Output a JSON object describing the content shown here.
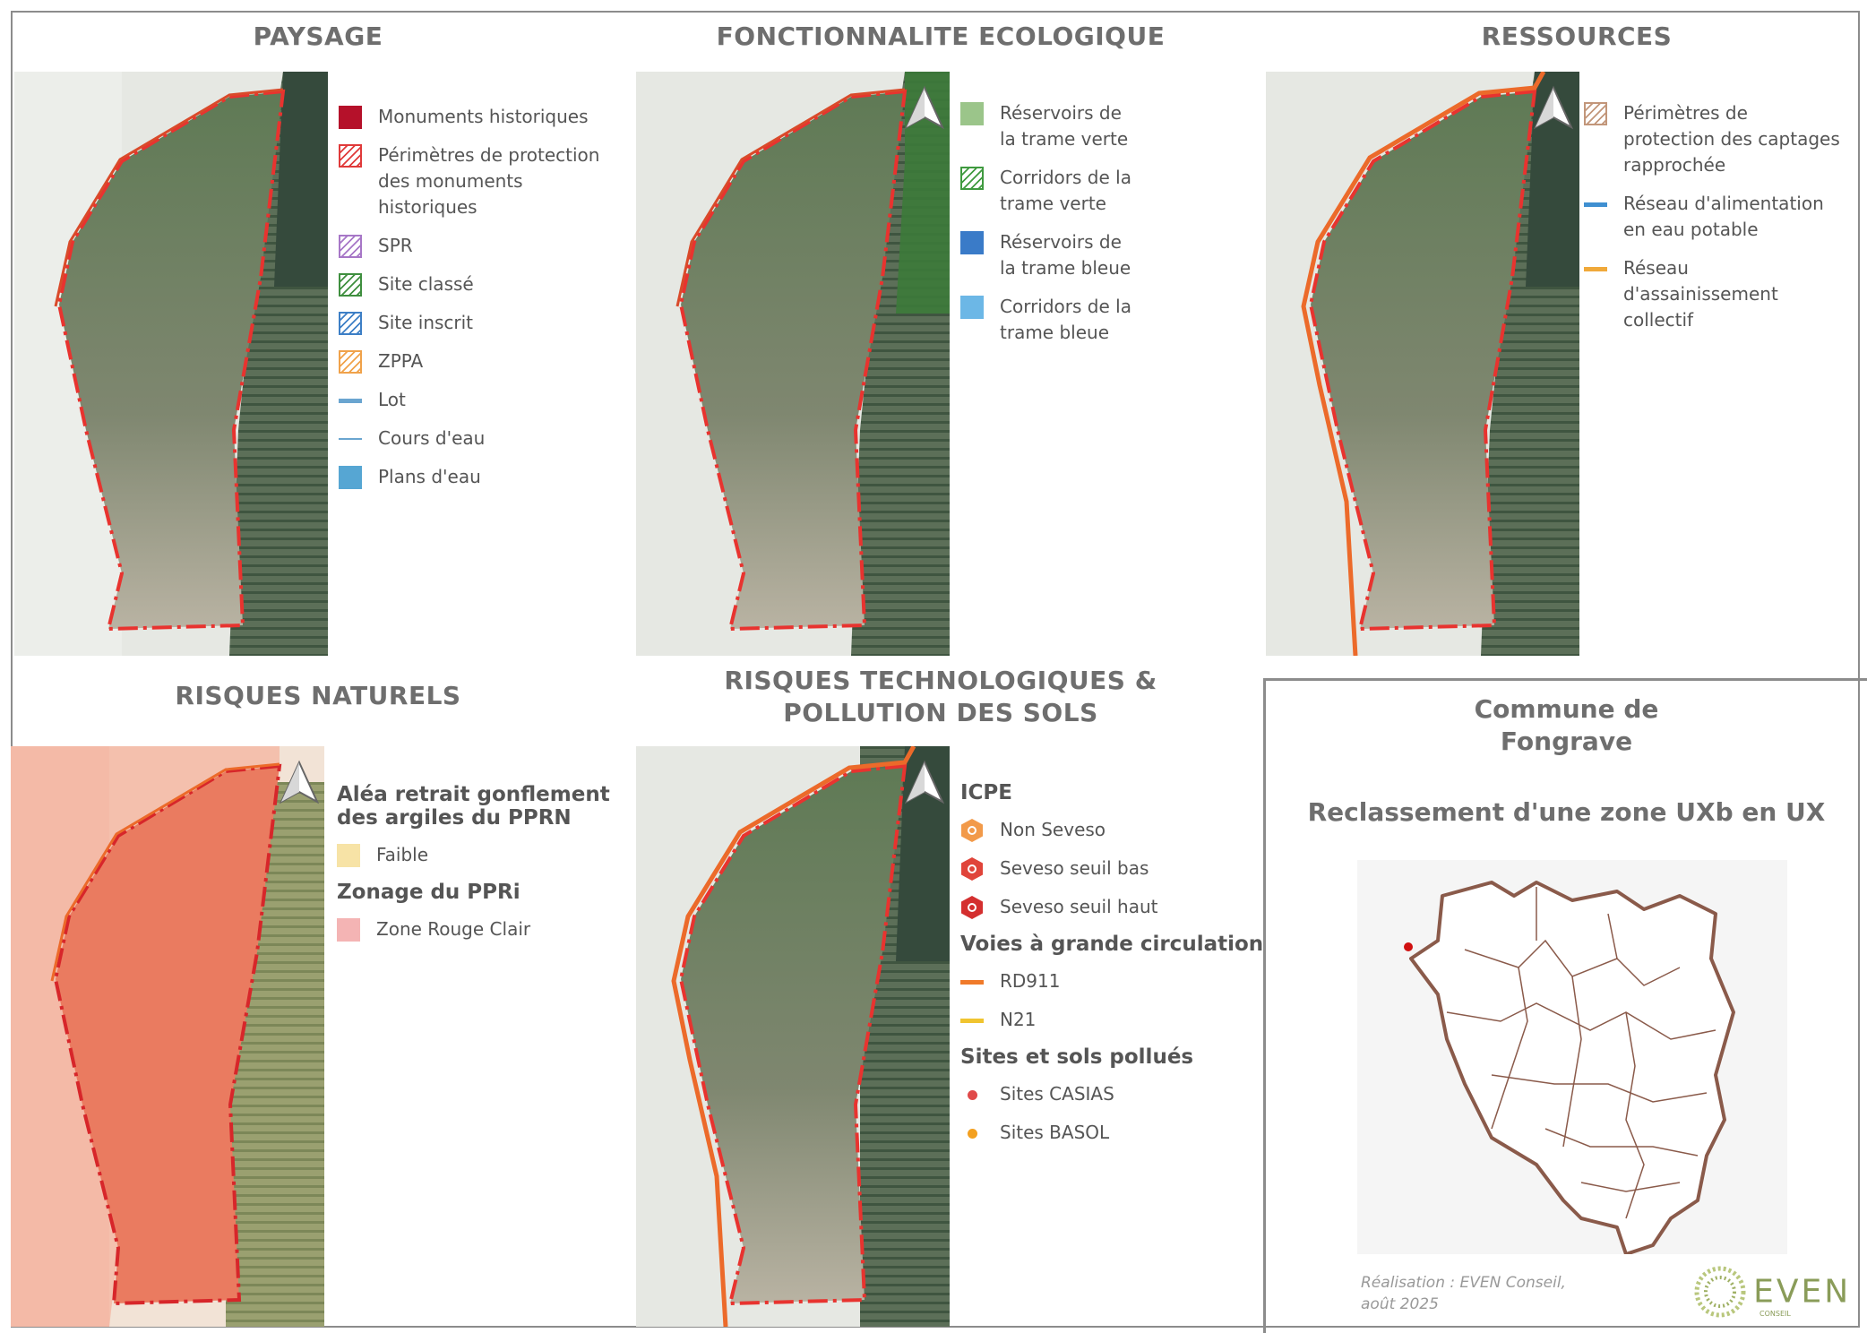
{
  "panels": {
    "paysage": {
      "title": "PAYSAGE",
      "legend": [
        {
          "label": "Monuments historiques",
          "kind": "fill",
          "color": "#b5112a"
        },
        {
          "label": "Périmètres de protection des monuments historiques",
          "kind": "hatch",
          "color": "#e03a3a"
        },
        {
          "label": "SPR",
          "kind": "hatch",
          "color": "#a777c7"
        },
        {
          "label": "Site classé",
          "kind": "hatch",
          "color": "#3f8f3f"
        },
        {
          "label": "Site inscrit",
          "kind": "hatch",
          "color": "#3d7fc6"
        },
        {
          "label": "ZPPA",
          "kind": "hatch",
          "color": "#f0a24a"
        },
        {
          "label": "Lot",
          "kind": "line",
          "color": "#6aa5d0"
        },
        {
          "label": "Cours d'eau",
          "kind": "thin",
          "color": "#6aa5d0"
        },
        {
          "label": "Plans d'eau",
          "kind": "fill",
          "color": "#56a6d3"
        }
      ]
    },
    "fonctionnalite": {
      "title": "FONCTIONNALITE ECOLOGIQUE",
      "legend": [
        {
          "label": "Réservoirs de la trame verte",
          "kind": "fill",
          "color": "#9bc58a"
        },
        {
          "label": "Corridors de la trame verte",
          "kind": "hatch",
          "color": "#3f9a3f"
        },
        {
          "label": "Réservoirs de la trame bleue",
          "kind": "fill",
          "color": "#3a7bc8"
        },
        {
          "label": "Corridors de la trame bleue",
          "kind": "fill",
          "color": "#6cb7e6"
        }
      ]
    },
    "ressources": {
      "title": "RESSOURCES",
      "legend": [
        {
          "label": "Périmètres de protection des captages rapprochée",
          "kind": "hatch",
          "color": "#c2967a"
        },
        {
          "label": "Réseau d'alimentation en eau potable",
          "kind": "line",
          "color": "#3f8fd1"
        },
        {
          "label": "Réseau d'assainissement collectif",
          "kind": "line",
          "color": "#f0a93a"
        }
      ]
    },
    "risques_naturels": {
      "title": "RISQUES NATURELS",
      "heading1": "Aléa retrait gonflement des argiles du PPRN",
      "item1": {
        "label": "Faible",
        "color": "#f7e3a6"
      },
      "heading2": "Zonage du PPRi",
      "item2": {
        "label": "Zone Rouge Clair",
        "color": "#f4b4b4"
      }
    },
    "risques_techno": {
      "title": "RISQUES TECHNOLOGIQUES & POLLUTION DES SOLS",
      "icpe": {
        "heading": "ICPE",
        "items": [
          {
            "label": "Non Seveso",
            "color": "#f29a4a"
          },
          {
            "label": "Seveso seuil bas",
            "color": "#e0443a"
          },
          {
            "label": "Seveso seuil haut",
            "color": "#d42f2f"
          }
        ]
      },
      "voies": {
        "heading": "Voies à grande circulation",
        "items": [
          {
            "label": "RD911",
            "color": "#f07a2a"
          },
          {
            "label": "N21",
            "color": "#f0c430"
          }
        ]
      },
      "sites": {
        "heading": "Sites et sols pollués",
        "items": [
          {
            "label": "Sites CASIAS",
            "color": "#e04a4a"
          },
          {
            "label": "Sites BASOL",
            "color": "#f3a020"
          }
        ]
      }
    }
  },
  "commune": {
    "title": "Commune de Fongrave",
    "subtitle": "Reclassement d'une zone UXb en UX",
    "credit_line1": "Réalisation : EVEN Conseil,",
    "credit_line2": "août 2025",
    "logo_text": "EVEN",
    "logo_sub": "CONSEIL"
  },
  "colors": {
    "parcel_outline": "#e8332f",
    "commune_outline": "#8a5a4a",
    "location_dot": "#d01010"
  }
}
